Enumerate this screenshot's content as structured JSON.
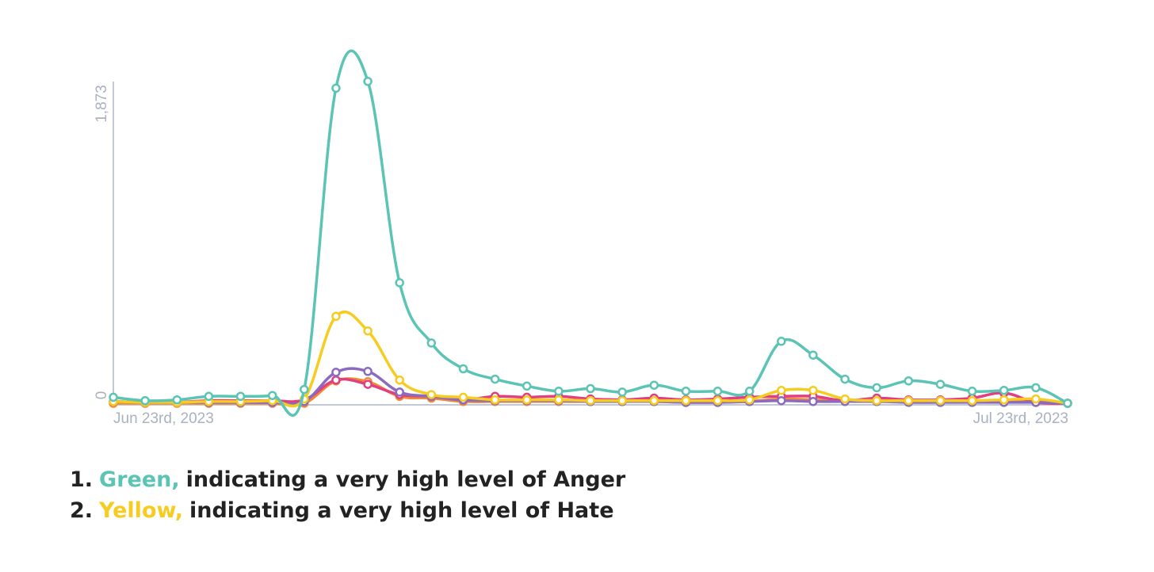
{
  "chart_data": {
    "type": "line",
    "x_start_label": "Jun 23rd, 2023",
    "x_end_label": "Jul 23rd, 2023",
    "y_tick_max_label": "1,873",
    "y_tick_min_label": "0",
    "ylim": [
      0,
      1873
    ],
    "x": [
      "2023-06-23",
      "2023-06-24",
      "2023-06-25",
      "2023-06-26",
      "2023-06-27",
      "2023-06-28",
      "2023-06-29",
      "2023-06-30",
      "2023-07-01",
      "2023-07-02",
      "2023-07-03",
      "2023-07-04",
      "2023-07-05",
      "2023-07-06",
      "2023-07-07",
      "2023-07-08",
      "2023-07-09",
      "2023-07-10",
      "2023-07-11",
      "2023-07-12",
      "2023-07-13",
      "2023-07-14",
      "2023-07-15",
      "2023-07-16",
      "2023-07-17",
      "2023-07-18",
      "2023-07-19",
      "2023-07-20",
      "2023-07-21",
      "2023-07-22",
      "2023-07-23"
    ],
    "series": [
      {
        "color": "#5bc4b4",
        "values": [
          35,
          15,
          20,
          40,
          40,
          45,
          80,
          1830,
          1870,
          700,
          350,
          200,
          140,
          100,
          70,
          85,
          65,
          105,
          70,
          70,
          70,
          360,
          280,
          140,
          90,
          130,
          110,
          70,
          75,
          90,
          0
        ]
      },
      {
        "color": "#f5cc1f",
        "values": [
          10,
          5,
          5,
          10,
          10,
          15,
          25,
          505,
          420,
          135,
          50,
          35,
          20,
          20,
          20,
          15,
          15,
          15,
          15,
          15,
          20,
          75,
          75,
          25,
          15,
          15,
          15,
          15,
          20,
          25,
          0
        ]
      },
      {
        "color": "#8b6bc1",
        "values": [
          10,
          5,
          5,
          5,
          5,
          5,
          10,
          180,
          185,
          65,
          40,
          20,
          15,
          15,
          15,
          10,
          10,
          10,
          5,
          5,
          10,
          15,
          10,
          10,
          10,
          5,
          5,
          5,
          5,
          5,
          0
        ]
      },
      {
        "color": "#e0407f",
        "values": [
          10,
          5,
          5,
          15,
          15,
          15,
          20,
          135,
          110,
          50,
          40,
          20,
          40,
          35,
          40,
          25,
          20,
          30,
          20,
          25,
          35,
          40,
          40,
          15,
          30,
          20,
          20,
          30,
          60,
          5,
          0
        ]
      },
      {
        "color": "#f28a35",
        "values": [
          0,
          0,
          0,
          0,
          0,
          0,
          0,
          130,
          125,
          40,
          30,
          10,
          10,
          10,
          10,
          10,
          10,
          10,
          5,
          5,
          10,
          25,
          20,
          15,
          15,
          10,
          10,
          10,
          10,
          10,
          0
        ]
      }
    ]
  },
  "legend": [
    {
      "number": "1.",
      "color_word": "Green,",
      "text": "indicating a very high level of Anger",
      "color": "#5bc4b4"
    },
    {
      "number": "2.",
      "color_word": "Yellow,",
      "text": "indicating a very high level of Hate",
      "color": "#f5cc1f"
    }
  ],
  "colors": {
    "axis": "#c2c8d4",
    "tick_text": "#aab1c0"
  }
}
